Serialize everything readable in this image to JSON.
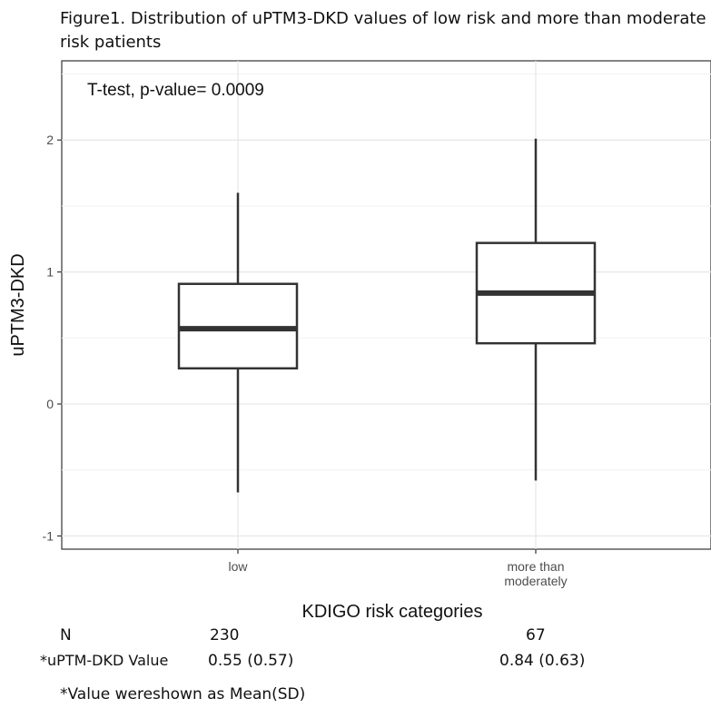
{
  "figure": {
    "title": "Figure1. Distribution of  uPTM3-DKD  values of low risk and more than moderate risk patients"
  },
  "chart_data": {
    "type": "box",
    "annotation": "T-test, p-value= 0.0009",
    "xlabel": "KDIGO risk categories",
    "ylabel": "uPTM3-DKD",
    "ylim": [
      -1.1,
      2.6
    ],
    "yticks": [
      -1,
      0,
      1,
      2
    ],
    "grid": true,
    "categories": [
      {
        "label": [
          "low"
        ],
        "whisker_low": -0.67,
        "q1": 0.27,
        "median": 0.57,
        "q3": 0.91,
        "whisker_high": 1.6
      },
      {
        "label": [
          "more than",
          "moderately"
        ],
        "whisker_low": -0.58,
        "q1": 0.46,
        "median": 0.84,
        "q3": 1.22,
        "whisker_high": 2.01
      }
    ]
  },
  "stats": {
    "n_label": "N",
    "n_values": [
      "230",
      "67"
    ],
    "value_label": "*uPTM-DKD Value",
    "value_values": [
      "0.55 (0.57)",
      "0.84 (0.63)"
    ]
  },
  "footnote": "*Value wereshown as Mean(SD)"
}
